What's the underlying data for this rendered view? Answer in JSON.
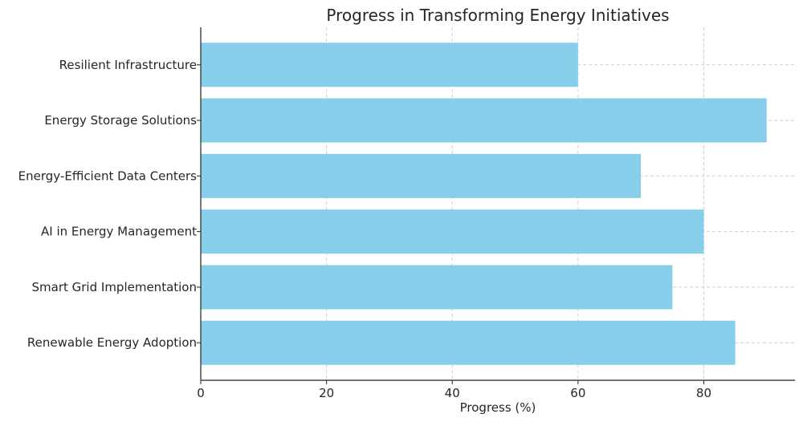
{
  "chart_data": {
    "type": "bar",
    "orientation": "horizontal",
    "title": "Progress in Transforming Energy Initiatives",
    "xlabel": "Progress (%)",
    "ylabel": "",
    "categories": [
      "Renewable Energy Adoption",
      "Smart Grid Implementation",
      "AI in Energy Management",
      "Energy-Efficient Data Centers",
      "Energy Storage Solutions",
      "Resilient Infrastructure"
    ],
    "values": [
      85,
      75,
      80,
      70,
      90,
      60
    ],
    "xlim": [
      0,
      94.5
    ],
    "xticks": [
      "0",
      "20",
      "40",
      "60",
      "80"
    ],
    "grid": true,
    "bar_color": "#87ceeb"
  }
}
